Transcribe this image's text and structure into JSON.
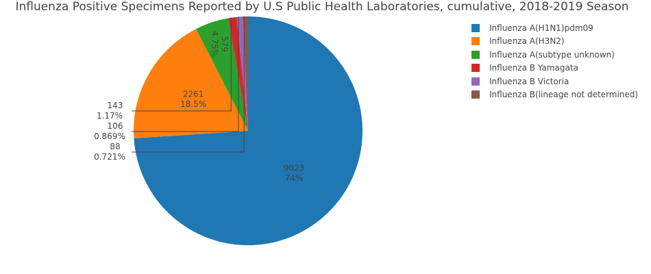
{
  "chart_data": {
    "type": "pie",
    "title": "Influenza Positive Specimens Reported by U.S Public Health Laboratories, cumulative, 2018-2019 Season",
    "labels": [
      "Influenza A(H1N1)pdm09",
      "Influenza A(H3N2)",
      "Influenza A(subtype unknown)",
      "Influenza B Yamagata",
      "Influenza B Victoria",
      "Influenza B(lineage not determined)"
    ],
    "values": [
      9023,
      2261,
      579,
      143,
      106,
      88
    ],
    "percent_labels": [
      "74%",
      "18.5%",
      "4.75%",
      "1.17%",
      "0.869%",
      "0.721%"
    ],
    "colors": [
      "#1f77b4",
      "#ff7f0e",
      "#2ca02c",
      "#d62728",
      "#9467bd",
      "#8c564b"
    ],
    "direction": "clockwise",
    "start_angle": "top",
    "legend_position": "top-right"
  }
}
